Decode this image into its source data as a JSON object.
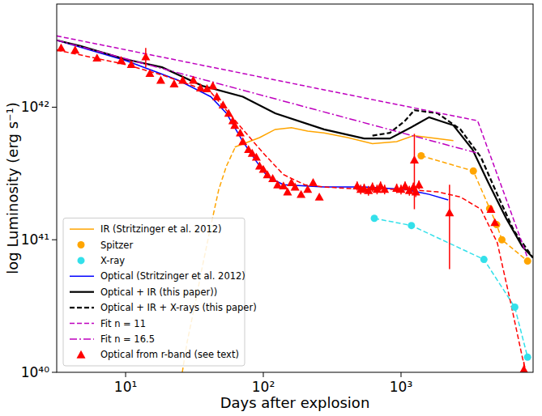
{
  "chart_data": {
    "type": "line",
    "xlabel": "Days after explosion",
    "ylabel": "log Luminosity (erg s⁻¹)",
    "log": true,
    "legend": "lower left",
    "xlim": [
      3.16,
      9100
    ],
    "ylim": [
      1e+40,
      6e+42
    ],
    "xticks": [
      {
        "value": 10,
        "label": "10¹"
      },
      {
        "value": 100,
        "label": "10²"
      },
      {
        "value": 1000,
        "label": "10³"
      }
    ],
    "yticks": [
      {
        "value": 1e+40,
        "label": "10⁴⁰"
      },
      {
        "value": 1e+41,
        "label": "10⁴¹"
      },
      {
        "value": 1e+42,
        "label": "10⁴²"
      }
    ],
    "series": [
      {
        "name": "IR (Stritzinger et al. 2012)",
        "type": "line",
        "color": "#ffa500",
        "line_style": "solid",
        "x": [
          62,
          94,
          122,
          160,
          210,
          276,
          410,
          620,
          930,
          1230,
          1840,
          2400
        ],
        "values": [
          5e+41,
          5.9e+41,
          6.8e+41,
          7e+41,
          6.6e+41,
          6.4e+41,
          5.9e+41,
          5.3e+41,
          5.5e+41,
          6.1e+41,
          5.8e+41,
          5.6e+41
        ]
      },
      {
        "name": "Spitzer",
        "type": "scatter",
        "color": "#ffa500",
        "marker": "circle",
        "line_style": "dashed",
        "x": [
          1400,
          3350,
          4400,
          4950,
          5400,
          8300
        ],
        "values": [
          4.3e+41,
          3.3e+41,
          1.72e+41,
          1.3e+41,
          1e+41,
          6.9e+40
        ]
      },
      {
        "name": "X-ray",
        "type": "scatter",
        "color": "#33e0ea",
        "marker": "circle",
        "line_style": "dashed",
        "x": [
          640,
          1190,
          4000,
          6700,
          8300
        ],
        "values": [
          1.45e+41,
          1.28e+41,
          7.1e+40,
          3.1e+40,
          1.3e+40
        ]
      },
      {
        "name": "Optical (Stritzinger et al. 2012)",
        "type": "line",
        "color": "#0000ff",
        "line_style": "solid",
        "x": [
          3.16,
          10,
          24,
          41.5,
          54,
          71,
          89,
          107,
          140,
          276,
          540,
          1070,
          1600,
          2200
        ],
        "values": [
          3.2e+42,
          2.25e+42,
          1.6e+42,
          1.2e+42,
          9e+41,
          5.5e+41,
          3.9e+41,
          3e+41,
          2.6e+41,
          2.5e+41,
          2.5e+41,
          2.4e+41,
          2.2e+41,
          2e+41
        ]
      },
      {
        "name": "Optical + IR (this paper))",
        "type": "line",
        "color": "#000000",
        "line_style": "solid",
        "x": [
          3.16,
          4.7,
          10,
          18.4,
          36,
          71,
          122,
          276,
          540,
          830,
          1260,
          1600,
          2400,
          3300,
          4300,
          5800,
          7600,
          9100
        ],
        "values": [
          3.2e+42,
          2.9e+42,
          2.3e+42,
          2e+42,
          1.45e+42,
          1.2e+42,
          9e+41,
          6.8e+41,
          5.8e+41,
          5.8e+41,
          7.3e+41,
          8.4e+41,
          7.3e+41,
          4.8e+41,
          2.7e+41,
          1.45e+41,
          8.9e+40,
          7.3e+40
        ]
      },
      {
        "name": "Optical + IR + X-rays (this paper)",
        "type": "line",
        "color": "#000000",
        "line_style": "dashed",
        "x": [
          620,
          830,
          1070,
          1250,
          1840,
          2700,
          3800,
          5000,
          6600,
          9100
        ],
        "values": [
          6.1e+41,
          6.4e+41,
          7.9e+41,
          9.5e+41,
          9e+41,
          6.8e+41,
          4.2e+41,
          2.2e+41,
          1.17e+41,
          7.3e+40
        ]
      },
      {
        "name": "Fit n = 11",
        "type": "line",
        "color": "#bf00bf",
        "line_style": "dashed",
        "x": [
          3.16,
          3600,
          8300
        ],
        "values": [
          3.45e+42,
          7.9e+41,
          7.3e+40
        ]
      },
      {
        "name": "Fit n = 16.5",
        "type": "line",
        "color": "#bf00bf",
        "line_style": "dashdot",
        "x": [
          3.16,
          3600
        ],
        "values": [
          3.2e+42,
          4.5e+41
        ]
      },
      {
        "name": "Optical from r-band (see text)",
        "type": "scatter",
        "color": "#ff0000",
        "marker": "triangle",
        "x": [
          3.4,
          4.3,
          6.2,
          9.3,
          11,
          14,
          15,
          18,
          22.5,
          26,
          31,
          35,
          39,
          43,
          46,
          51,
          56,
          60,
          62,
          68,
          71,
          78,
          83,
          89,
          94,
          100,
          107,
          117,
          127,
          140,
          150,
          160,
          170,
          188,
          210,
          230,
          255,
          480,
          510,
          540,
          580,
          620,
          670,
          710,
          760,
          930,
          1000,
          1070,
          1150,
          1230,
          1250,
          1280,
          1350,
          2250,
          4500,
          4800,
          7800
        ],
        "values": [
          2.8e+42,
          2.7e+42,
          2.35e+42,
          2.25e+42,
          2.1e+42,
          2.4e+42,
          1.8e+42,
          1.6e+42,
          1.5e+42,
          1.6e+42,
          1.6e+42,
          1.4e+42,
          1.38e+42,
          1.45e+42,
          1.2e+42,
          1.04e+42,
          9e+41,
          7.9e+41,
          7.3e+41,
          6.4e+41,
          5.5e+41,
          4.8e+41,
          4.5e+41,
          4.2e+41,
          3.6e+41,
          3.4e+41,
          3.1e+41,
          2.9e+41,
          2.6e+41,
          2.55e+41,
          2.3e+41,
          2.7e+41,
          2.5e+41,
          2.2e+41,
          2.4e+41,
          2.7e+41,
          2.1e+41,
          2.55e+41,
          2.4e+41,
          2.45e+41,
          2.35e+41,
          2.5e+41,
          2.4e+41,
          2.55e+41,
          2.4e+41,
          2.45e+41,
          2.4e+41,
          2.55e+41,
          2.35e+41,
          2.5e+41,
          4e+41,
          2.3e+41,
          2.6e+41,
          1.6e+41,
          1.7e+41,
          1.35e+41,
          1.05e+40
        ],
        "errors": [
          null,
          null,
          null,
          null,
          null,
          4e+41,
          null,
          null,
          null,
          null,
          null,
          null,
          null,
          null,
          null,
          null,
          null,
          null,
          null,
          null,
          null,
          null,
          null,
          null,
          null,
          null,
          null,
          null,
          null,
          null,
          null,
          null,
          null,
          null,
          null,
          null,
          null,
          2e+40,
          2e+40,
          2e+40,
          2e+40,
          2e+40,
          2e+40,
          2e+40,
          2e+40,
          2e+40,
          2e+40,
          2e+40,
          2e+40,
          2e+40,
          2.3e+41,
          2e+40,
          2e+40,
          1e+41,
          null,
          null,
          1.5e+39
        ]
      },
      {
        "type": "line",
        "color": "#ff0000",
        "line_style": "dashed",
        "x": [
          3.16,
          10,
          18.4,
          41.5,
          71,
          100,
          140,
          200,
          276,
          540,
          1070,
          1840,
          2700,
          3800,
          5000,
          6200,
          7600,
          8100
        ],
        "values": [
          2.7e+42,
          2.1e+42,
          1.75e+42,
          1.3e+42,
          6.8e+41,
          4.5e+41,
          3.1e+41,
          2.6e+41,
          2.5e+41,
          2.4e+41,
          2.4e+41,
          2.3e+41,
          2.1e+41,
          1.7e+41,
          9.5e+40,
          3.5e+40,
          1.3e+40,
          1e+40
        ]
      },
      {
        "type": "line",
        "color": "#ffa500",
        "line_style": "dashed",
        "x": [
          25.8,
          28,
          31.6,
          36,
          41.5,
          47.5,
          54,
          62
        ],
        "values": [
          1e+40,
          1.7e+40,
          3.1e+40,
          6.2e+40,
          1.26e+41,
          2.4e+41,
          3.6e+41,
          4.9e+41
        ]
      }
    ]
  }
}
